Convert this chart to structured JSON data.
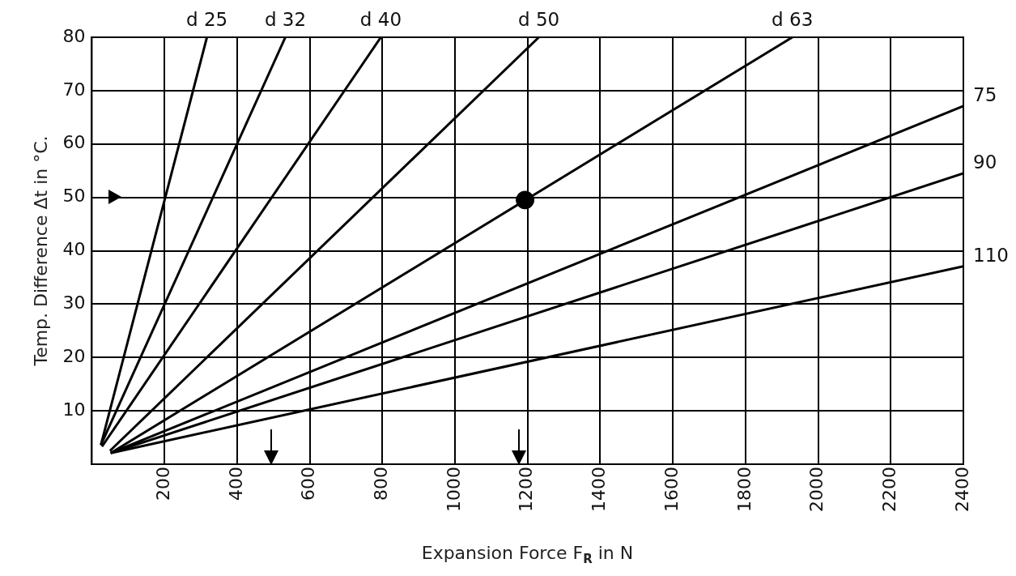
{
  "chart_data": {
    "type": "line",
    "xlabel": "Expansion Force F$_{R}$ in N",
    "ylabel": "Temp. Difference Δt in °C.",
    "xlim": [
      0,
      2400
    ],
    "xticks": [
      200,
      400,
      600,
      800,
      1000,
      1200,
      1400,
      1600,
      1800,
      2000,
      2200,
      2400
    ],
    "ylim": [
      0,
      80
    ],
    "yticks": [
      10,
      20,
      30,
      40,
      50,
      60,
      70,
      80
    ],
    "grid": true,
    "legend": false,
    "marker": "none",
    "line_style": "solid",
    "series": [
      {
        "name": "d 25",
        "color": "#000000",
        "x": [
          25,
          317
        ],
        "values": [
          3.6,
          80
        ]
      },
      {
        "name": "d 32",
        "color": "#000000",
        "x": [
          25,
          533
        ],
        "values": [
          3.6,
          80
        ]
      },
      {
        "name": "d 40",
        "color": "#000000",
        "x": [
          28,
          796
        ],
        "values": [
          3.3,
          80
        ]
      },
      {
        "name": "d 50",
        "color": "#000000",
        "x": [
          50,
          1231
        ],
        "values": [
          2.5,
          80
        ]
      },
      {
        "name": "d 63",
        "color": "#000000",
        "x": [
          52,
          1929
        ],
        "values": [
          2.1,
          80
        ]
      },
      {
        "name": "75",
        "color": "#000000",
        "x": [
          52,
          2400
        ],
        "values": [
          2.1,
          67.1
        ]
      },
      {
        "name": "90",
        "color": "#000000",
        "x": [
          52,
          2400
        ],
        "values": [
          2.1,
          54.5
        ]
      },
      {
        "name": "110",
        "color": "#000000",
        "x": [
          52,
          2400
        ],
        "values": [
          2.1,
          37.1
        ]
      },
      {
        "type": "scatter",
        "color": "#000000",
        "x": [
          1193
        ],
        "values": [
          49.5
        ],
        "marker": "circle"
      }
    ]
  }
}
